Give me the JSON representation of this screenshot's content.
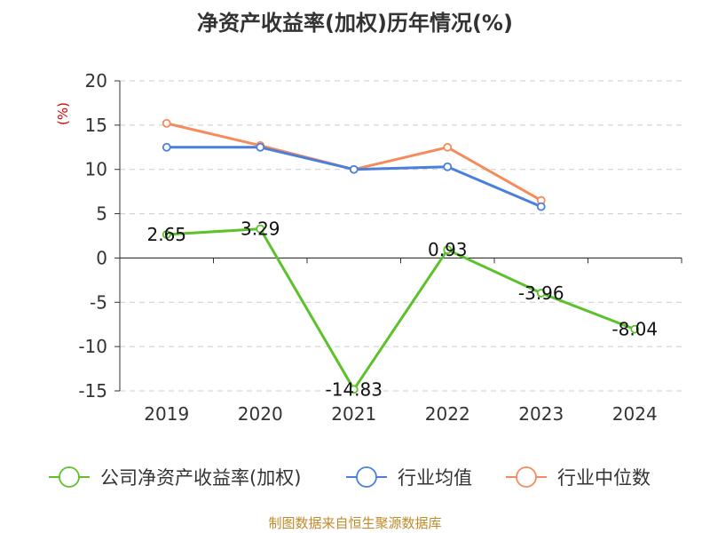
{
  "chart_data": {
    "type": "line",
    "title": "净资产收益率(加权)历年情况(%)",
    "ylabel": "(%)",
    "xlabel": "",
    "ylim": [
      -15,
      20
    ],
    "yticks": [
      -15,
      -10,
      -5,
      0,
      5,
      10,
      15,
      20
    ],
    "grid": true,
    "legend_position": "bottom",
    "categories": [
      "2019",
      "2020",
      "2021",
      "2022",
      "2023",
      "2024"
    ],
    "series": [
      {
        "name": "公司净资产收益率(加权)",
        "color": "#5cc12a",
        "values": [
          2.65,
          3.29,
          -14.83,
          0.93,
          -3.96,
          -8.04
        ],
        "labels": [
          "2.65",
          "3.29",
          "-14.83",
          "0.93",
          "-3.96",
          "-8.04"
        ]
      },
      {
        "name": "行业均值",
        "color": "#4a7fdc",
        "values": [
          12.5,
          12.5,
          10.0,
          10.3,
          5.8,
          null
        ]
      },
      {
        "name": "行业中位数",
        "color": "#f58a5c",
        "values": [
          15.2,
          12.7,
          10.0,
          12.5,
          6.5,
          null
        ]
      }
    ],
    "source": "制图数据来自恒生聚源数据库"
  }
}
